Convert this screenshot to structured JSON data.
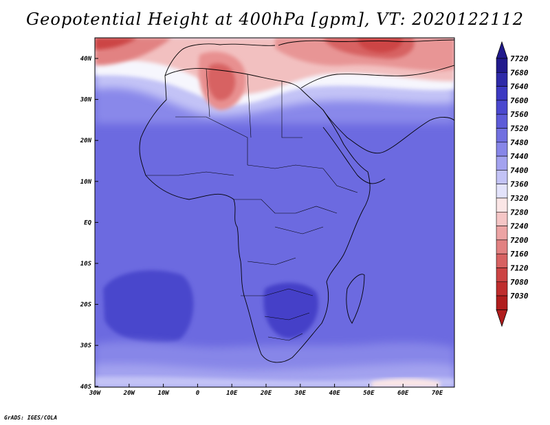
{
  "title": "Geopotential Height at 400hPa [gpm], VT: 2020122112",
  "credit": "GrADS: IGES/COLA",
  "axes": {
    "lat_labels": [
      "40N",
      "30N",
      "20N",
      "10N",
      "EQ",
      "10S",
      "20S",
      "30S",
      "40S"
    ],
    "lon_labels": [
      "30W",
      "20W",
      "10W",
      "0",
      "10E",
      "20E",
      "30E",
      "40E",
      "50E",
      "60E",
      "70E"
    ]
  },
  "colorbar": {
    "labels": [
      "7720",
      "7680",
      "7640",
      "7600",
      "7560",
      "7520",
      "7480",
      "7440",
      "7400",
      "7360",
      "7320",
      "7280",
      "7240",
      "7200",
      "7160",
      "7120",
      "7080",
      "7030"
    ],
    "colors": [
      "#211a8c",
      "#2e2aa8",
      "#3c39c2",
      "#4a48cf",
      "#5d5bd8",
      "#7170e0",
      "#8786e8",
      "#a3a2ef",
      "#c3c3f6",
      "#e3e3fb",
      "#fbe6e6",
      "#f5c6c6",
      "#eca4a4",
      "#e28282",
      "#d76262",
      "#cc4444",
      "#bf2d2d",
      "#b01d1d"
    ]
  },
  "colors": {
    "deep_red": "#c22a2a",
    "ocean_blue": "#6e6ce0",
    "land_blue": "#5d5bd8",
    "high_blue": "#4440c8",
    "border": "#000000"
  }
}
